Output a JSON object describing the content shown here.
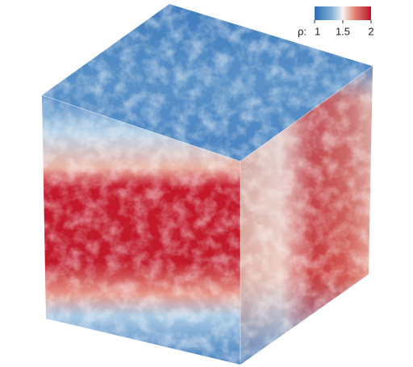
{
  "colorbar": {
    "label": "ρ:",
    "range": [
      1,
      2
    ],
    "ticks": [
      1,
      1.5,
      2
    ]
  }
}
